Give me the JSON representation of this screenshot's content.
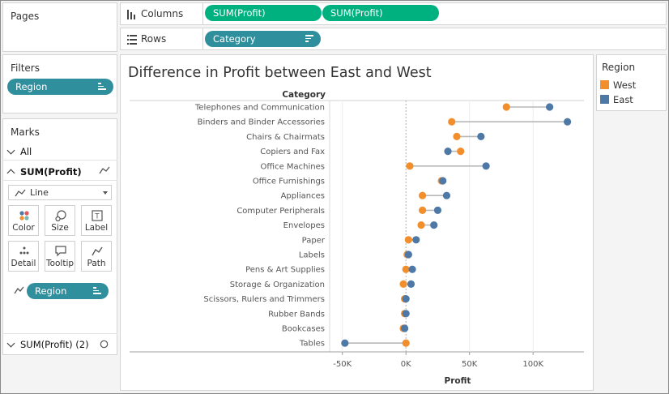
{
  "shelves": {
    "pages_label": "Pages",
    "columns_label": "Columns",
    "rows_label": "Rows",
    "columns_pills": [
      "SUM(Profit)",
      "SUM(Profit)"
    ],
    "rows_pill": "Category"
  },
  "filters": {
    "label": "Filters",
    "pill": "Region"
  },
  "marks": {
    "label": "Marks",
    "all_label": "All",
    "card_label": "SUM(Profit)",
    "mark_type": "Line",
    "buttons": [
      "Color",
      "Size",
      "Label",
      "Detail",
      "Tooltip",
      "Path"
    ],
    "pill": "Region",
    "second_card_label": "SUM(Profit) (2)"
  },
  "legend": {
    "title": "Region",
    "items": [
      {
        "name": "West",
        "color": "#f28e2b"
      },
      {
        "name": "East",
        "color": "#4e79a7"
      }
    ]
  },
  "colors": {
    "connector": "#b8b8b8",
    "west": "#f28e2b",
    "east": "#4e79a7",
    "teal_pill": "#2f8f9d",
    "green_pill": "#00b180"
  },
  "chart_data": {
    "type": "scatter",
    "title": "Difference in Profit between East and West",
    "row_header": "Category",
    "xlabel": "Profit",
    "xlim": [
      -60000,
      140000
    ],
    "x_ticks": [
      -50000,
      0,
      50000,
      100000
    ],
    "x_tick_labels": [
      "-50K",
      "0K",
      "50K",
      "100K"
    ],
    "categories": [
      "Telephones and Communication",
      "Binders and Binder Accessories",
      "Chairs & Chairmats",
      "Copiers and Fax",
      "Office Machines",
      "Office Furnishings",
      "Appliances",
      "Computer Peripherals",
      "Envelopes",
      "Paper",
      "Labels",
      "Pens & Art Supplies",
      "Storage & Organization",
      "Scissors, Rulers and Trimmers",
      "Rubber Bands",
      "Bookcases",
      "Tables"
    ],
    "series": [
      {
        "name": "West",
        "values": [
          79000,
          36000,
          40000,
          43000,
          3000,
          28000,
          13000,
          13000,
          12000,
          2000,
          1000,
          0,
          -2000,
          -1000,
          -1000,
          -2000,
          0
        ]
      },
      {
        "name": "East",
        "values": [
          113000,
          127000,
          59000,
          33000,
          63000,
          29000,
          32000,
          25000,
          22000,
          8000,
          2000,
          5000,
          4000,
          0,
          0,
          -1000,
          -48000
        ]
      }
    ]
  }
}
